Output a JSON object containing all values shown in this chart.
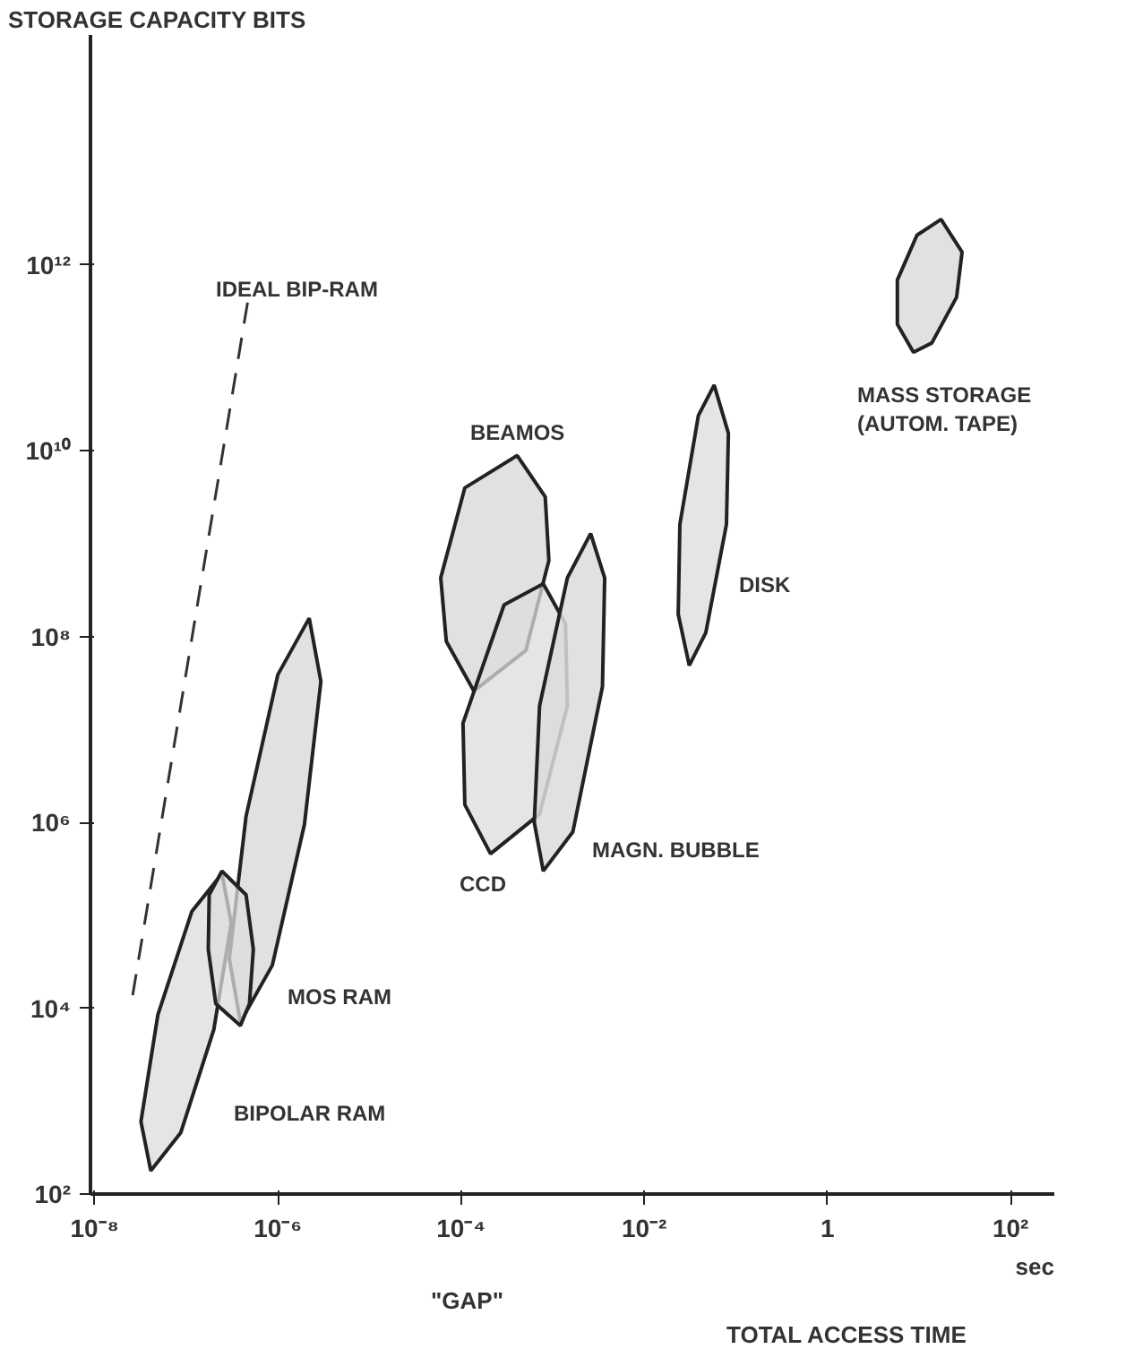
{
  "chart_data": {
    "type": "area",
    "xlabel": "TOTAL ACCESS TIME",
    "ylabel": "STORAGE CAPACITY BITS",
    "log": "xy",
    "grid": false,
    "legend": false,
    "xlim": [
      9e-09,
      300
    ],
    "ylim": [
      100,
      300000000000000.0
    ],
    "xticks": [
      {
        "value": 1e-08,
        "label": "10⁻⁸"
      },
      {
        "value": 1e-06,
        "label": "10⁻⁶"
      },
      {
        "value": 0.0001,
        "label": "10⁻⁴"
      },
      {
        "value": 0.01,
        "label": "10⁻²"
      },
      1,
      {
        "value": 100,
        "label": "10²"
      }
    ],
    "yticks": [
      {
        "value": 100,
        "label": "10²"
      },
      {
        "value": 10000,
        "label": "10⁴"
      },
      {
        "value": 1000000.0,
        "label": "10⁶"
      },
      {
        "value": 100000000.0,
        "label": "10⁸"
      },
      {
        "value": 10000000000.0,
        "label": "10¹⁰"
      },
      {
        "value": 1000000000000.0,
        "label": "10¹²"
      }
    ],
    "series": [
      {
        "name": "BIPOLAR RAM",
        "color": "#dcdcdc",
        "x": [
          2.45e-07,
          3.1e-07,
          2e-07,
          8.7e-08,
          4.1e-08,
          3.2e-08,
          4.9e-08,
          1.15e-07
        ],
        "values": [
          280000.0,
          83000.0,
          5900.0,
          457,
          178,
          603,
          8500.0,
          110000.0
        ]
      },
      {
        "name": "MOS RAM",
        "color": "#dcdcdc",
        "x": [
          2.2e-06,
          2.95e-06,
          1.95e-06,
          8.7e-07,
          3.9e-07,
          2.95e-07,
          4.5e-07,
          1e-06
        ],
        "values": [
          158000000.0,
          33000000.0,
          950000.0,
          29000.0,
          7100.0,
          34000.0,
          1170000.0,
          39000000.0
        ]
      },
      {
        "color": "#dcdcdc",
        "x": [
          2.45e-07,
          4.5e-07,
          5.4e-07,
          4.9e-07,
          3.9e-07,
          2.1e-07,
          1.74e-07,
          1.78e-07
        ],
        "values": [
          300000.0,
          166000.0,
          43000.0,
          11200.0,
          6500.0,
          11200.0,
          43000.0,
          166000.0
        ]
      },
      {
        "name": "BEAMOS",
        "color": "#dcdcdc",
        "x": [
          0.00041,
          0.00083,
          0.00091,
          0.00051,
          0.000138,
          6.9e-05,
          6e-05,
          0.00011
        ],
        "values": [
          8900000000.0,
          3200000000.0,
          660000000.0,
          71000000.0,
          26000000.0,
          89000000.0,
          430000000.0,
          4000000000.0
        ]
      },
      {
        "name": "CCD",
        "color": "#dcdcdc",
        "x": [
          0.00079,
          0.00138,
          0.00145,
          0.00072,
          0.00021,
          0.00011,
          0.000105,
          0.000295
        ],
        "values": [
          370000000.0,
          138000000.0,
          18000000.0,
          1230000.0,
          460000.0,
          1550000.0,
          11700000.0,
          220000000.0
        ]
      },
      {
        "name": "MAGN. BUBBLE",
        "color": "#dcdcdc",
        "x": [
          0.0026,
          0.0037,
          0.0035,
          0.00166,
          0.00079,
          0.00063,
          0.00072,
          0.00145
        ],
        "values": [
          1290000000.0,
          430000000.0,
          29000000.0,
          790000.0,
          300000.0,
          1000000.0,
          18000000.0,
          430000000.0
        ]
      },
      {
        "name": "DISK",
        "color": "#dcdcdc",
        "x": [
          0.058,
          0.083,
          0.079,
          0.047,
          0.031,
          0.0235,
          0.0245,
          0.039
        ],
        "values": [
          51000000000.0,
          15500000000.0,
          1620000000.0,
          110000000.0,
          49000000.0,
          174000000.0,
          1620000000.0,
          24000000000.0
        ]
      },
      {
        "name": "MASS STORAGE\n(AUTOM. TAPE)",
        "color": "#dcdcdc",
        "x": [
          17.4,
          29.5,
          25.7,
          13.8,
          8.7,
          5.8,
          5.8,
          9.5
        ],
        "values": [
          3100000000000.0,
          1380000000000.0,
          450000000000.0,
          145000000000.0,
          115000000000.0,
          230000000000.0,
          690000000000.0,
          2100000000000.0
        ]
      },
      {
        "name": "IDEAL BIP-RAM",
        "type": "line",
        "color": "#333333",
        "line_style": "dashed",
        "x": [
          2.6e-08,
          4.7e-07
        ],
        "values": [
          13800.0,
          410000000000.0
        ]
      }
    ],
    "annotations": [
      "sec",
      "\"GAP\""
    ]
  }
}
